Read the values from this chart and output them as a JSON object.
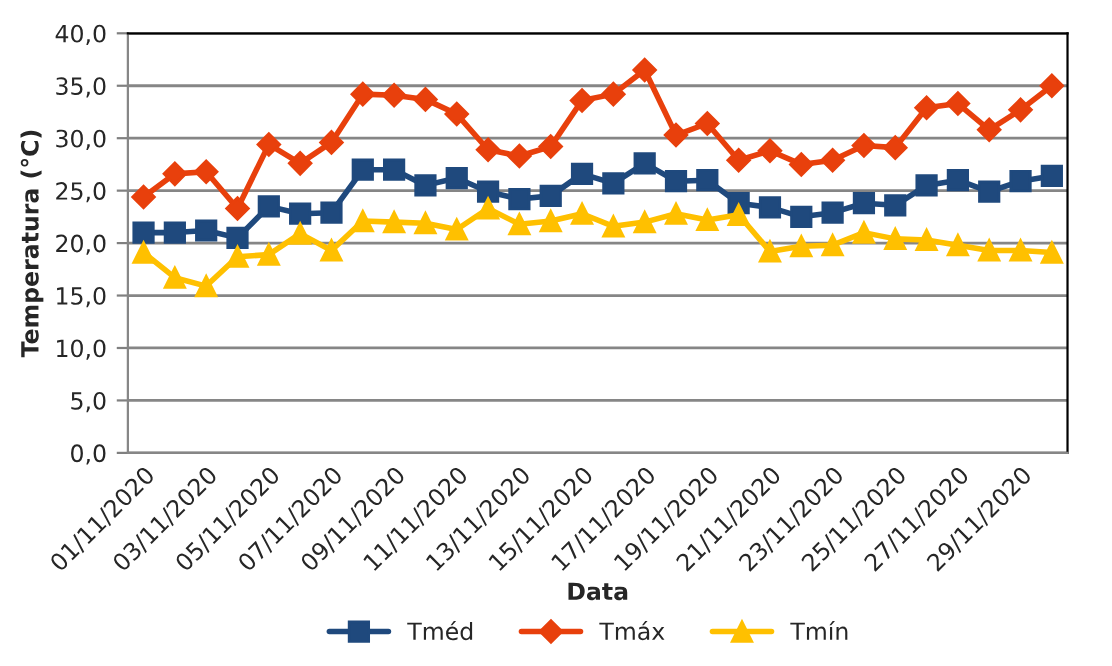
{
  "chart_data": {
    "type": "line",
    "xlabel": "Data",
    "ylabel": "Temperatura (°C)",
    "categories": [
      "01/11/2020",
      null,
      "03/11/2020",
      null,
      "05/11/2020",
      null,
      "07/11/2020",
      null,
      "09/11/2020",
      null,
      "11/11/2020",
      null,
      "13/11/2020",
      null,
      "15/11/2020",
      null,
      "17/11/2020",
      null,
      "19/11/2020",
      null,
      "21/11/2020",
      null,
      "23/11/2020",
      null,
      "25/11/2020",
      null,
      "27/11/2020",
      null,
      "29/11/2020",
      null
    ],
    "series": [
      {
        "name": "Tméd",
        "color": "#1f497d",
        "marker": "square",
        "values": [
          21.0,
          21.0,
          21.2,
          20.5,
          23.5,
          22.8,
          22.9,
          27.0,
          27.0,
          25.5,
          26.2,
          24.9,
          24.2,
          24.5,
          26.6,
          25.7,
          27.6,
          25.9,
          26.0,
          23.8,
          23.4,
          22.5,
          22.9,
          23.8,
          23.6,
          25.5,
          26.0,
          24.9,
          25.9,
          26.4
        ]
      },
      {
        "name": "Tmáx",
        "color": "#e8400c",
        "marker": "diamond",
        "values": [
          24.4,
          26.6,
          26.8,
          23.3,
          29.4,
          27.6,
          29.6,
          34.2,
          34.1,
          33.7,
          32.3,
          28.9,
          28.3,
          29.2,
          33.6,
          34.2,
          36.5,
          30.3,
          31.4,
          27.9,
          28.8,
          27.5,
          27.9,
          29.3,
          29.1,
          32.9,
          33.3,
          30.8,
          32.7,
          35.0
        ]
      },
      {
        "name": "Tmín",
        "color": "#ffc000",
        "marker": "triangle",
        "values": [
          19.1,
          16.7,
          15.9,
          18.7,
          18.9,
          20.9,
          19.3,
          22.1,
          22.0,
          21.9,
          21.3,
          23.3,
          21.8,
          22.1,
          22.8,
          21.6,
          22.0,
          22.8,
          22.2,
          22.7,
          19.2,
          19.7,
          19.8,
          21.0,
          20.4,
          20.3,
          19.8,
          19.3,
          19.3,
          19.1
        ]
      }
    ],
    "ylim": [
      0,
      40
    ],
    "yticks": [
      {
        "value": 0,
        "label": "0,0"
      },
      {
        "value": 5,
        "label": "5,0"
      },
      {
        "value": 10,
        "label": "10,0"
      },
      {
        "value": 15,
        "label": "15,0"
      },
      {
        "value": 20,
        "label": "20,0"
      },
      {
        "value": 25,
        "label": "25,0"
      },
      {
        "value": 30,
        "label": "30,0"
      },
      {
        "value": 35,
        "label": "35,0"
      },
      {
        "value": 40,
        "label": "40,0"
      }
    ],
    "grid": "y",
    "legend": "bottom",
    "line_style": "solid"
  }
}
